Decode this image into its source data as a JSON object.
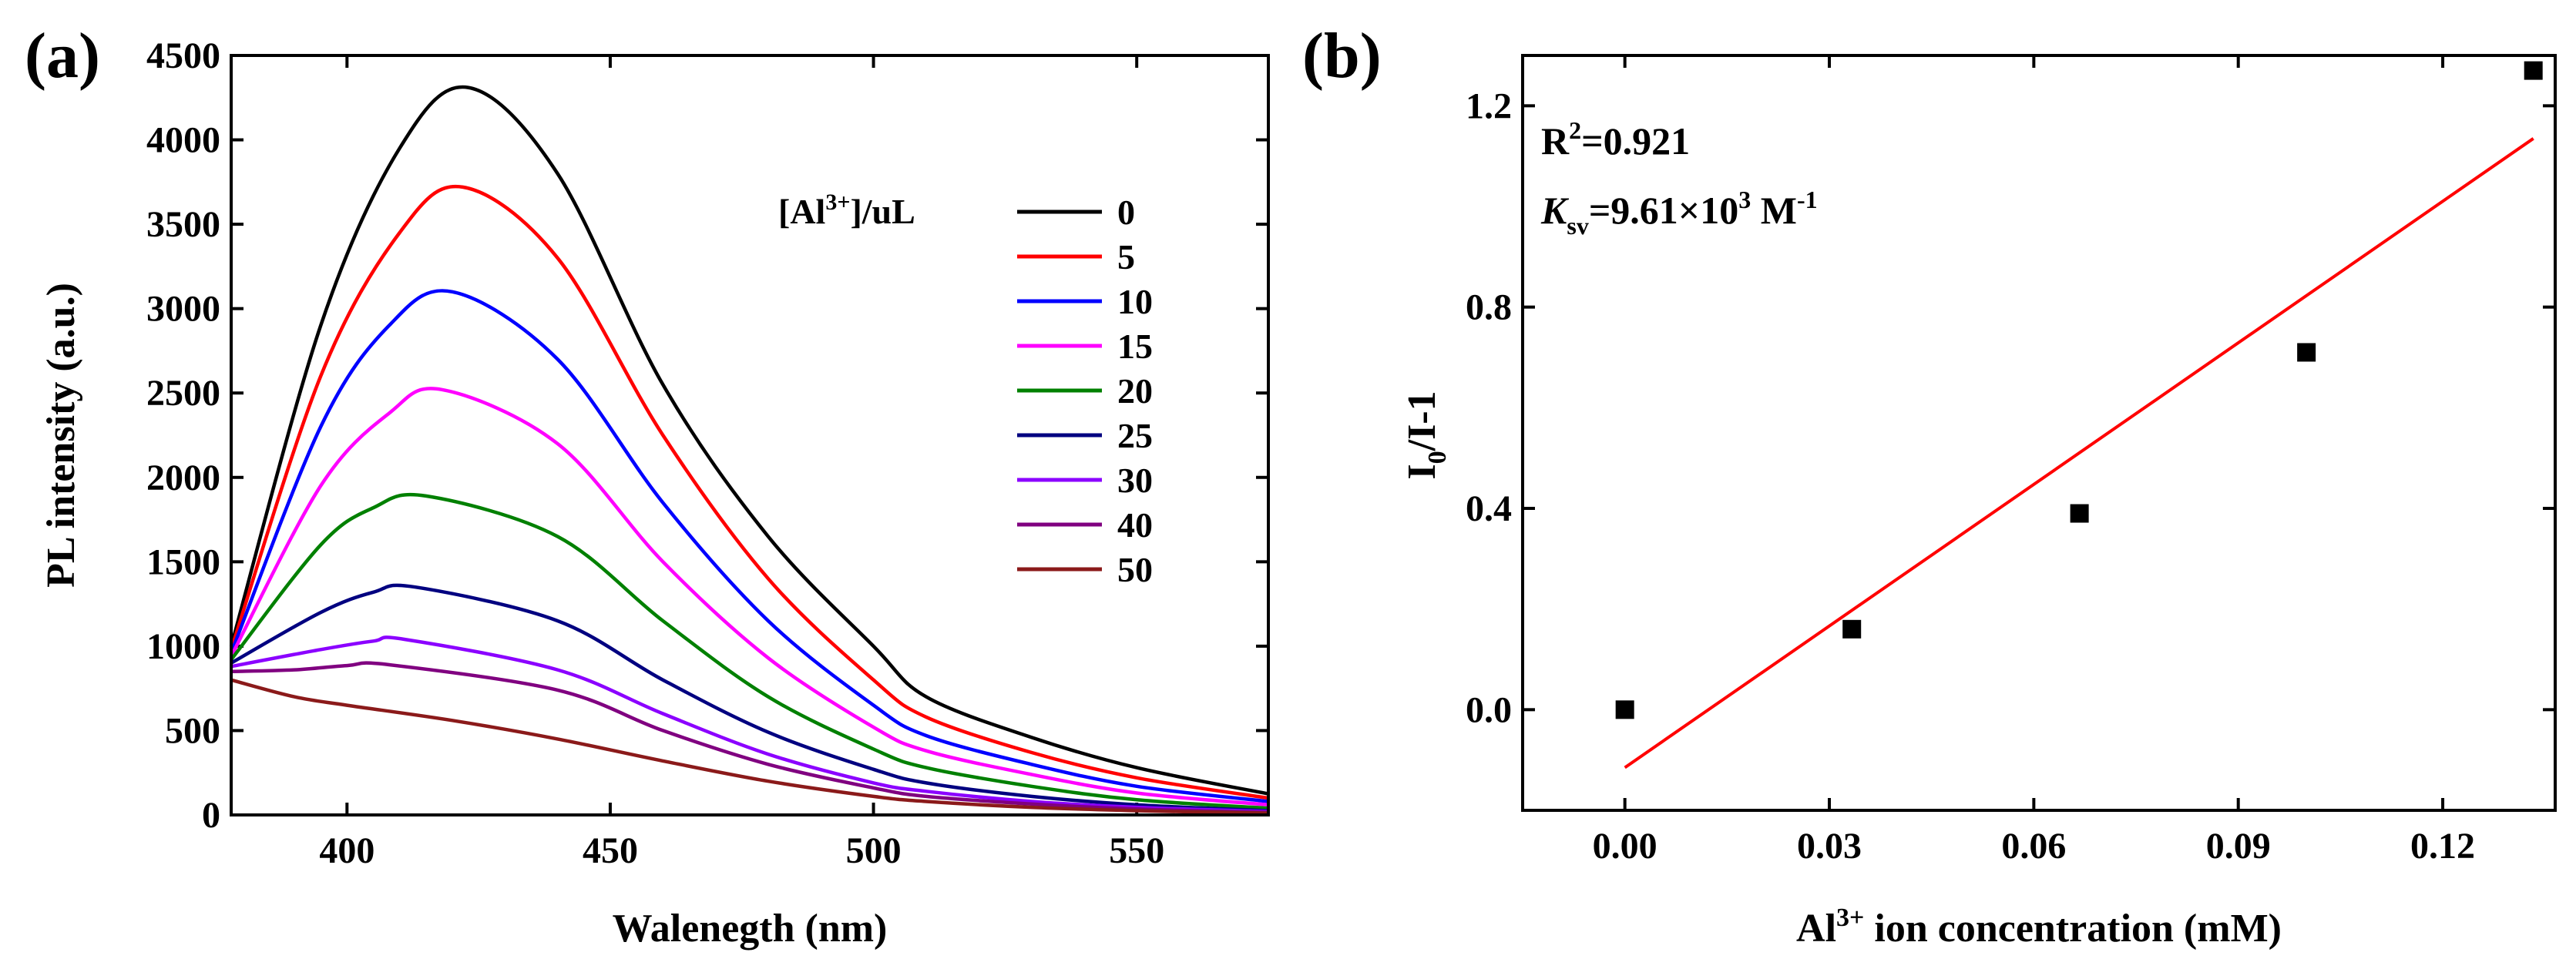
{
  "chart_data": [
    {
      "panel_label": "(a)",
      "type": "line",
      "xlabel": "Walenegth (nm)",
      "ylabel": "PL intensity (a.u.)",
      "xlim": [
        378,
        575
      ],
      "ylim": [
        0,
        4500
      ],
      "xticks": [
        400,
        450,
        500,
        550
      ],
      "yticks": [
        0,
        500,
        1000,
        1500,
        2000,
        2500,
        3000,
        3500,
        4000,
        4500
      ],
      "legend": {
        "title_base": "[Al",
        "title_sup": "3+",
        "title_end": "]/uL",
        "placement": "top-right"
      },
      "series": [
        {
          "name": "0",
          "color": "#000000",
          "values": [
            [
              378,
              1000
            ],
            [
              395,
              2900
            ],
            [
              410,
              3950
            ],
            [
              423,
              4310
            ],
            [
              440,
              3800
            ],
            [
              460,
              2550
            ],
            [
              480,
              1650
            ],
            [
              500,
              1000
            ],
            [
              510,
              700
            ],
            [
              530,
              460
            ],
            [
              550,
              280
            ],
            [
              575,
              125
            ]
          ]
        },
        {
          "name": "5",
          "color": "#ff0000",
          "values": [
            [
              378,
              980
            ],
            [
              395,
              2600
            ],
            [
              410,
              3450
            ],
            [
              422,
              3720
            ],
            [
              440,
              3300
            ],
            [
              460,
              2250
            ],
            [
              480,
              1400
            ],
            [
              500,
              800
            ],
            [
              510,
              580
            ],
            [
              530,
              370
            ],
            [
              550,
              220
            ],
            [
              575,
              100
            ]
          ]
        },
        {
          "name": "10",
          "color": "#0000ff",
          "values": [
            [
              378,
              960
            ],
            [
              395,
              2300
            ],
            [
              408,
              2900
            ],
            [
              420,
              3100
            ],
            [
              440,
              2700
            ],
            [
              460,
              1850
            ],
            [
              480,
              1150
            ],
            [
              500,
              650
            ],
            [
              510,
              470
            ],
            [
              530,
              300
            ],
            [
              550,
              170
            ],
            [
              575,
              80
            ]
          ]
        },
        {
          "name": "15",
          "color": "#ff00ff",
          "values": [
            [
              378,
              940
            ],
            [
              395,
              1950
            ],
            [
              408,
              2380
            ],
            [
              418,
              2520
            ],
            [
              440,
              2200
            ],
            [
              460,
              1500
            ],
            [
              480,
              930
            ],
            [
              500,
              520
            ],
            [
              510,
              380
            ],
            [
              530,
              240
            ],
            [
              550,
              130
            ],
            [
              575,
              60
            ]
          ]
        },
        {
          "name": "20",
          "color": "#008000",
          "values": [
            [
              378,
              920
            ],
            [
              395,
              1600
            ],
            [
              405,
              1820
            ],
            [
              415,
              1890
            ],
            [
              440,
              1650
            ],
            [
              460,
              1150
            ],
            [
              480,
              700
            ],
            [
              500,
              390
            ],
            [
              510,
              280
            ],
            [
              530,
              170
            ],
            [
              550,
              90
            ],
            [
              575,
              40
            ]
          ]
        },
        {
          "name": "25",
          "color": "#000080",
          "values": [
            [
              378,
              900
            ],
            [
              395,
              1200
            ],
            [
              405,
              1320
            ],
            [
              413,
              1350
            ],
            [
              440,
              1150
            ],
            [
              460,
              800
            ],
            [
              480,
              490
            ],
            [
              500,
              270
            ],
            [
              510,
              190
            ],
            [
              530,
              110
            ],
            [
              550,
              60
            ],
            [
              575,
              25
            ]
          ]
        },
        {
          "name": "30",
          "color": "#8b00ff",
          "values": [
            [
              378,
              880
            ],
            [
              395,
              980
            ],
            [
              405,
              1030
            ],
            [
              411,
              1040
            ],
            [
              440,
              860
            ],
            [
              460,
              600
            ],
            [
              480,
              360
            ],
            [
              500,
              190
            ],
            [
              510,
              140
            ],
            [
              530,
              80
            ],
            [
              550,
              45
            ],
            [
              575,
              20
            ]
          ]
        },
        {
          "name": "40",
          "color": "#800080",
          "values": [
            [
              378,
              850
            ],
            [
              390,
              860
            ],
            [
              400,
              885
            ],
            [
              408,
              890
            ],
            [
              440,
              740
            ],
            [
              460,
              500
            ],
            [
              480,
              300
            ],
            [
              500,
              160
            ],
            [
              510,
              110
            ],
            [
              530,
              65
            ],
            [
              550,
              35
            ],
            [
              575,
              15
            ]
          ]
        },
        {
          "name": "50",
          "color": "#8b1a1a",
          "values": [
            [
              378,
              800
            ],
            [
              390,
              700
            ],
            [
              400,
              650
            ],
            [
              420,
              560
            ],
            [
              440,
              450
            ],
            [
              460,
              320
            ],
            [
              480,
              200
            ],
            [
              500,
              110
            ],
            [
              510,
              80
            ],
            [
              530,
              45
            ],
            [
              550,
              25
            ],
            [
              575,
              10
            ]
          ]
        }
      ]
    },
    {
      "panel_label": "(b)",
      "type": "scatter",
      "xlabel_base": "Al",
      "xlabel_sup": "3+",
      "xlabel_end": " ion concentration (mM)",
      "ylabel_base": "I",
      "ylabel_sub": "0",
      "ylabel_end": "/I-1",
      "xlim": [
        -0.015,
        0.1365
      ],
      "ylim": [
        -0.2,
        1.3
      ],
      "xticks": [
        "0.00",
        "0.03",
        "0.06",
        "0.09",
        "0.12"
      ],
      "yticks": [
        "0.0",
        "0.4",
        "0.8",
        "1.2"
      ],
      "points": [
        [
          0.0,
          0.0
        ],
        [
          0.0333,
          0.16
        ],
        [
          0.0667,
          0.39
        ],
        [
          0.1,
          0.71
        ],
        [
          0.1333,
          1.27
        ]
      ],
      "fit_line": {
        "color": "#ff0000",
        "x": [
          0.0,
          0.1333
        ],
        "y": [
          -0.115,
          1.135
        ]
      },
      "annotations": {
        "r2_base": "R",
        "r2_sup": "2",
        "r2_value": "=0.921",
        "ksv_base": "K",
        "ksv_sub": "sv",
        "ksv_value": "=9.61×10",
        "ksv_exp": "3",
        "ksv_unit": " M",
        "ksv_unit_exp": "-1"
      }
    }
  ]
}
